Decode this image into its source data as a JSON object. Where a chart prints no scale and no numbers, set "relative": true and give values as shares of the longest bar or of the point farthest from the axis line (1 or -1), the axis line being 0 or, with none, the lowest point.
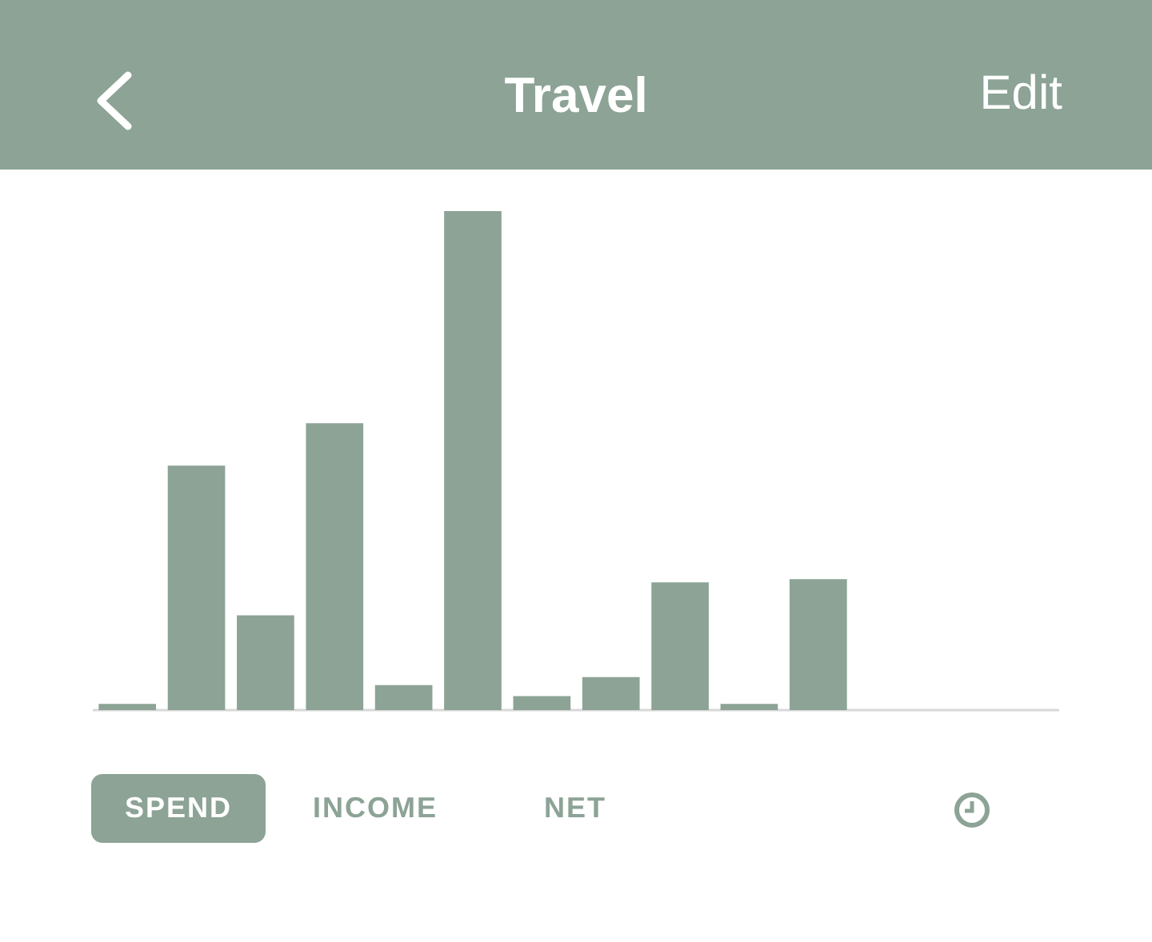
{
  "chart_data": {
    "type": "bar",
    "title": "Travel",
    "relative": true,
    "color": "#8ca396",
    "categories": [
      null,
      null,
      null,
      null,
      null,
      null,
      null,
      null,
      null,
      null,
      null
    ],
    "values": [
      0.0125,
      0.49,
      0.19,
      0.575,
      0.05,
      1,
      0.028,
      0.066,
      0.256,
      0.0125,
      0.2625
    ],
    "annotations": [
      "Edit",
      "SPEND",
      "INCOME",
      "NET"
    ]
  }
}
